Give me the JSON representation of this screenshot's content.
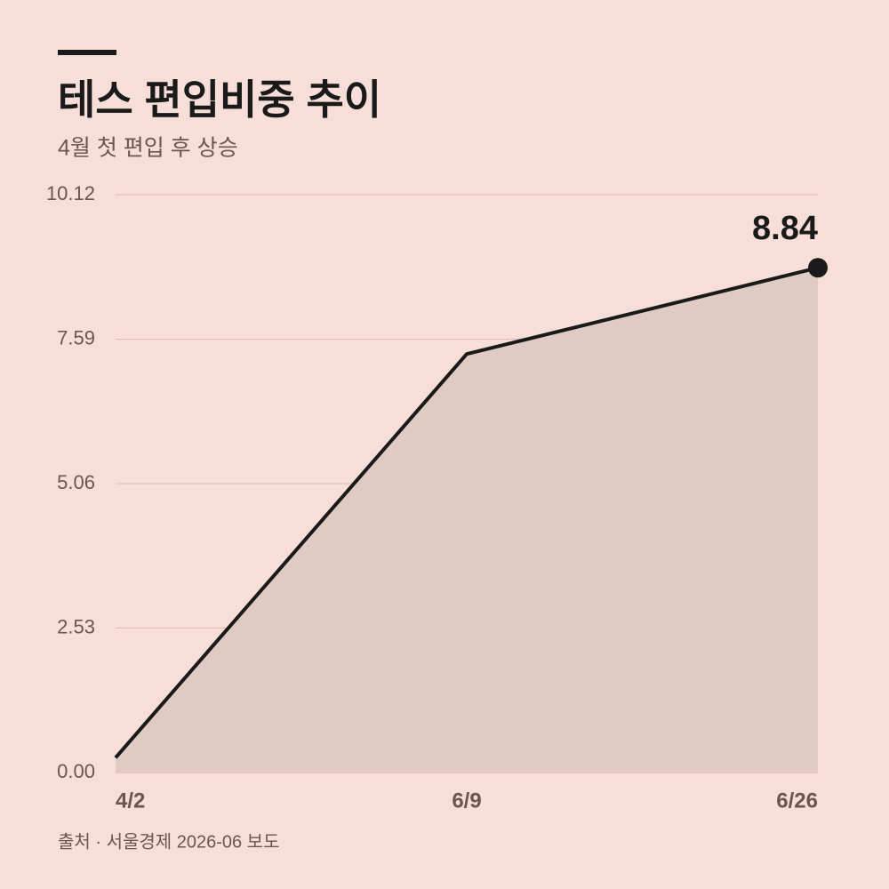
{
  "chart_data": {
    "type": "line",
    "title": "테스 편입비중 추이",
    "subtitle": "4월 첫 편입 후 상승",
    "source": "출처 · 서울경제 2026-06 보도",
    "categories": [
      "4/2",
      "6/9",
      "6/26"
    ],
    "series": [
      {
        "name": "편입비중",
        "color": "#1a1a1a",
        "values": [
          0.26,
          7.33,
          8.84
        ]
      }
    ],
    "ylim": [
      0,
      10.12
    ],
    "yticks": [
      {
        "value": 0,
        "label": "0.00"
      },
      2.53,
      5.06,
      7.59,
      10.12
    ],
    "grid": true
  }
}
